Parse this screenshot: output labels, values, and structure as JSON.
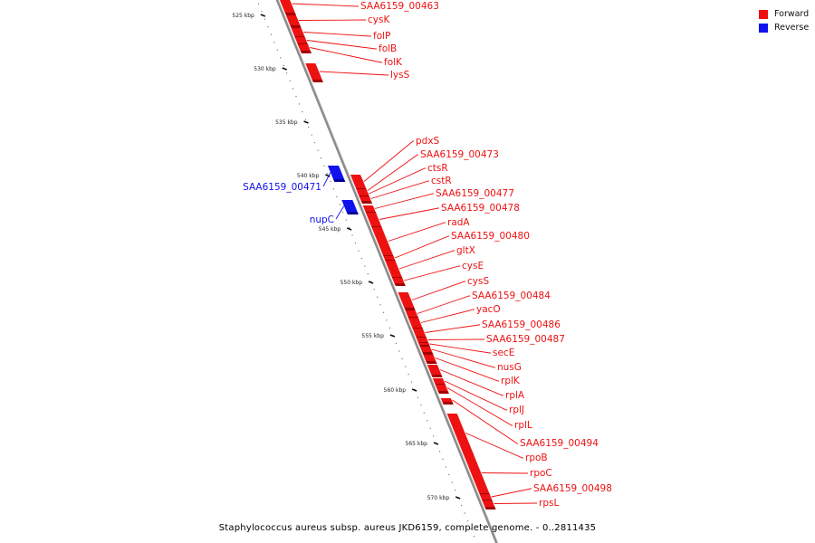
{
  "legend": [
    {
      "label": "Forward",
      "color": "#ee1111"
    },
    {
      "label": "Reverse",
      "color": "#1111ee"
    }
  ],
  "caption": "Staphylococcus aureus subsp. aureus JKD6159, complete genome. - 0..2811435",
  "colors": {
    "forward": "#ee1111",
    "forward_dark": "#a30000",
    "reverse": "#1111ee",
    "reverse_dark": "#00009a",
    "backbone": "#8a8a8a"
  },
  "ticks": [
    {
      "kbp": 525,
      "label": "525 kbp"
    },
    {
      "kbp": 530,
      "label": "530 kbp"
    },
    {
      "kbp": 535,
      "label": "535 kbp"
    },
    {
      "kbp": 540,
      "label": "540 kbp"
    },
    {
      "kbp": 545,
      "label": "545 kbp"
    },
    {
      "kbp": 550,
      "label": "550 kbp"
    },
    {
      "kbp": 555,
      "label": "555 kbp"
    },
    {
      "kbp": 560,
      "label": "560 kbp"
    },
    {
      "kbp": 565,
      "label": "565 kbp"
    },
    {
      "kbp": 570,
      "label": "570 kbp"
    }
  ],
  "genes_forward": [
    {
      "name": "SAA6159_00463"
    },
    {
      "name": "cysK"
    },
    {
      "name": "folP"
    },
    {
      "name": "folB"
    },
    {
      "name": "folK"
    },
    {
      "name": "lysS"
    },
    {
      "name": "pdxS"
    },
    {
      "name": "SAA6159_00473"
    },
    {
      "name": "ctsR"
    },
    {
      "name": "cstR"
    },
    {
      "name": "SAA6159_00477"
    },
    {
      "name": "SAA6159_00478"
    },
    {
      "name": "radA"
    },
    {
      "name": "SAA6159_00480"
    },
    {
      "name": "gltX"
    },
    {
      "name": "cysE"
    },
    {
      "name": "cysS"
    },
    {
      "name": "SAA6159_00484"
    },
    {
      "name": "yacO"
    },
    {
      "name": "SAA6159_00486"
    },
    {
      "name": "SAA6159_00487"
    },
    {
      "name": "secE"
    },
    {
      "name": "nusG"
    },
    {
      "name": "rplK"
    },
    {
      "name": "rplA"
    },
    {
      "name": "rplJ"
    },
    {
      "name": "rplL"
    },
    {
      "name": "SAA6159_00494"
    },
    {
      "name": "rpoB"
    },
    {
      "name": "rpoC"
    },
    {
      "name": "SAA6159_00498"
    },
    {
      "name": "rpsL"
    }
  ],
  "genes_reverse": [
    {
      "name": "SAA6159_00471"
    },
    {
      "name": "nupC"
    }
  ]
}
